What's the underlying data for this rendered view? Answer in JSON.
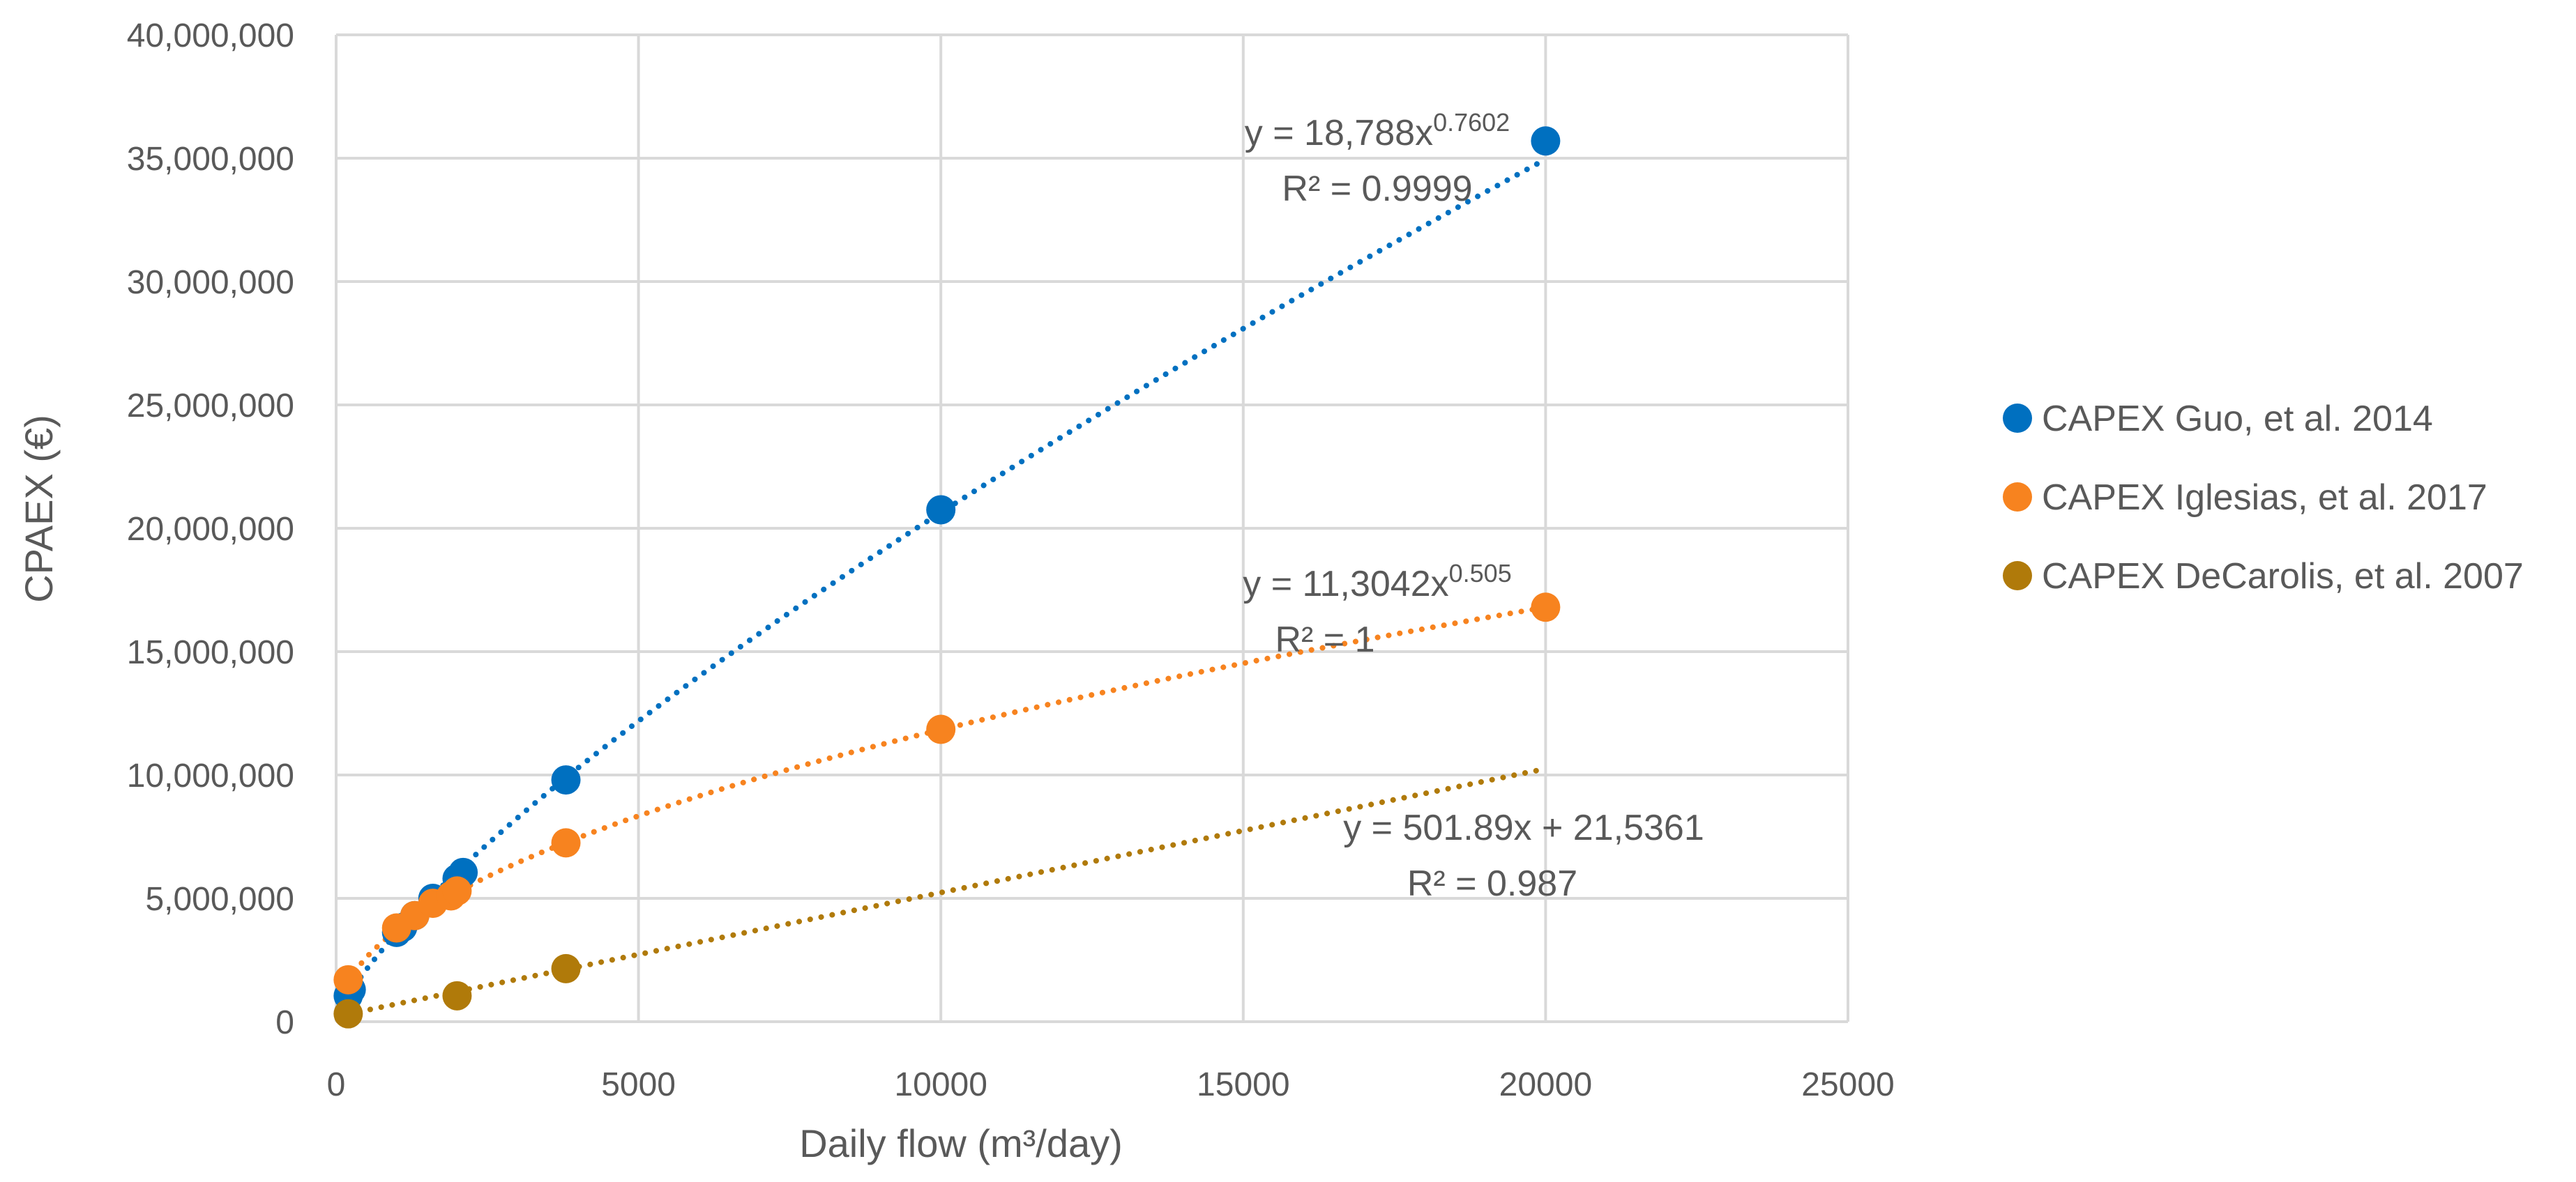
{
  "chart_data": {
    "type": "scatter",
    "title": "",
    "xlabel": "Daily flow (m³/day)",
    "ylabel": "CPAEX (€)",
    "xlim": [
      0,
      25000
    ],
    "ylim": [
      0,
      40000000
    ],
    "x_ticks": [
      "0",
      "5000",
      "10000",
      "15000",
      "20000",
      "25000"
    ],
    "y_ticks": [
      "0",
      "5,000,000",
      "10,000,000",
      "15,000,000",
      "20,000,000",
      "25,000,000",
      "30,000,000",
      "35,000,000",
      "40,000,000"
    ],
    "grid": true,
    "legend_position": "right",
    "series": [
      {
        "name": "CAPEX Guo, et al. 2014",
        "color": "#0070C0",
        "points": [
          [
            200,
            1050000
          ],
          [
            250,
            1300000
          ],
          [
            1000,
            3620000
          ],
          [
            1100,
            3820000
          ],
          [
            1300,
            4300000
          ],
          [
            1600,
            5000000
          ],
          [
            2000,
            5800000
          ],
          [
            2100,
            6050000
          ],
          [
            3800,
            9800000
          ],
          [
            10000,
            20750000
          ],
          [
            20000,
            35700000
          ]
        ],
        "trendline": {
          "kind": "power",
          "a": 18788,
          "b": 0.7602
        },
        "annotation": {
          "equation": "y = 18,788x",
          "exponent": "0.7602",
          "r2": "R² = 0.9999"
        }
      },
      {
        "name": "CAPEX Iglesias, et al. 2017",
        "color": "#F7831F",
        "points": [
          [
            200,
            1700000
          ],
          [
            1000,
            3800000
          ],
          [
            1300,
            4300000
          ],
          [
            1600,
            4800000
          ],
          [
            1900,
            5100000
          ],
          [
            2000,
            5300000
          ],
          [
            3800,
            7250000
          ],
          [
            10000,
            11850000
          ],
          [
            20000,
            16800000
          ]
        ],
        "trendline": {
          "kind": "power",
          "a": 113042,
          "b": 0.505
        },
        "annotation": {
          "equation": "y = 11,3042x",
          "exponent": "0.505",
          "r2": "R² = 1"
        }
      },
      {
        "name": "CAPEX DeCarolis, et al. 2007",
        "color": "#B07A0A",
        "points": [
          [
            200,
            320000
          ],
          [
            2000,
            1050000
          ],
          [
            3800,
            2150000
          ]
        ],
        "trendline": {
          "kind": "linear",
          "slope": 501.89,
          "intercept": 215361,
          "x_end": 20000
        },
        "annotation": {
          "equation": "y = 501.89x + 21,5361",
          "exponent": "",
          "r2": "R² = 0.987"
        }
      }
    ]
  }
}
